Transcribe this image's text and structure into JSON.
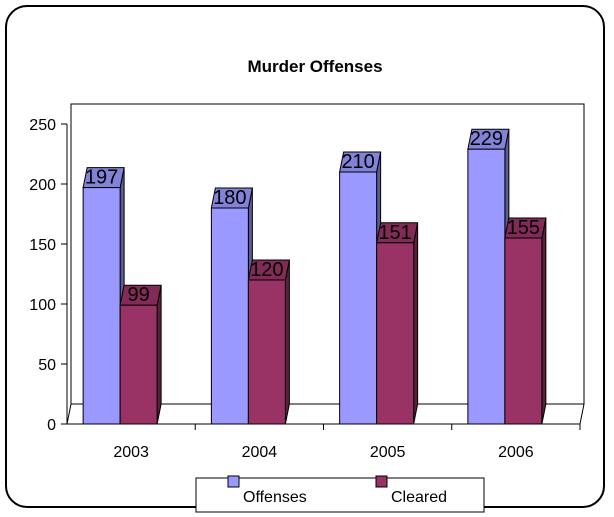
{
  "chart_data": {
    "type": "bar",
    "title": "Murder Offenses",
    "categories": [
      "2003",
      "2004",
      "2005",
      "2006"
    ],
    "series": [
      {
        "name": "Offenses",
        "values": [
          197,
          180,
          210,
          229
        ],
        "color": "#9999ff"
      },
      {
        "name": "Cleared",
        "values": [
          99,
          120,
          151,
          155
        ],
        "color": "#993366"
      }
    ],
    "ylim": [
      0,
      250
    ],
    "yticks": [
      "0",
      "50",
      "100",
      "150",
      "200",
      "250"
    ],
    "grid": false,
    "legend_position": "bottom",
    "style": "3d-bar"
  }
}
